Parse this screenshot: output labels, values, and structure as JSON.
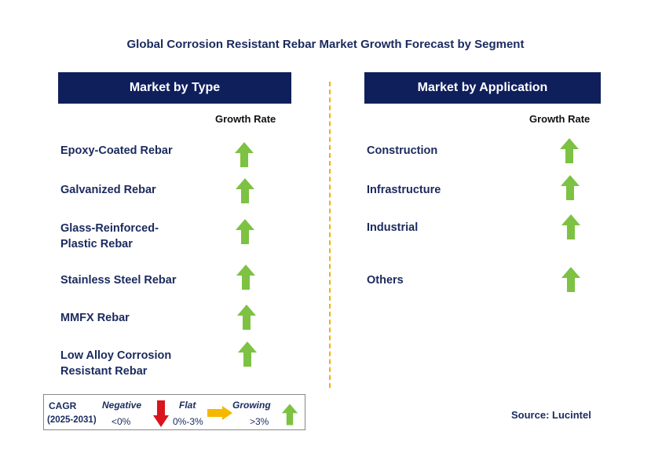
{
  "title": "Global Corrosion Resistant Rebar Market Growth Forecast by Segment",
  "left_panel": {
    "header": "Market by Type",
    "growth_label": "Growth Rate",
    "items": [
      {
        "label": "Epoxy-Coated Rebar",
        "growth": "growing"
      },
      {
        "label": "Galvanized Rebar",
        "growth": "growing"
      },
      {
        "label": "Glass-Reinforced-\nPlastic Rebar",
        "growth": "growing"
      },
      {
        "label": "Stainless Steel Rebar",
        "growth": "growing"
      },
      {
        "label": "MMFX Rebar",
        "growth": "growing"
      },
      {
        "label": "Low Alloy Corrosion\nResistant Rebar",
        "growth": "growing"
      }
    ]
  },
  "right_panel": {
    "header": "Market by Application",
    "growth_label": "Growth Rate",
    "items": [
      {
        "label": "Construction",
        "growth": "growing"
      },
      {
        "label": "Infrastructure",
        "growth": "growing"
      },
      {
        "label": "Industrial",
        "growth": "growing"
      },
      {
        "label": "Others",
        "growth": "growing"
      }
    ]
  },
  "legend": {
    "cagr": "CAGR",
    "period": "(2025-2031)",
    "negative": {
      "label": "Negative",
      "range": "<0%",
      "icon": "arrow-down-red-icon"
    },
    "flat": {
      "label": "Flat",
      "range": "0%-3%",
      "icon": "arrow-right-yellow-icon"
    },
    "growing": {
      "label": "Growing",
      "range": ">3%",
      "icon": "arrow-up-green-icon"
    }
  },
  "source": "Source: Lucintel",
  "colors": {
    "header_bg": "#0f1f5c",
    "text": "#1a2a5e",
    "growing": "#7dc242",
    "flat": "#f5b800",
    "negative": "#d9141c",
    "divider": "#f0b400"
  }
}
